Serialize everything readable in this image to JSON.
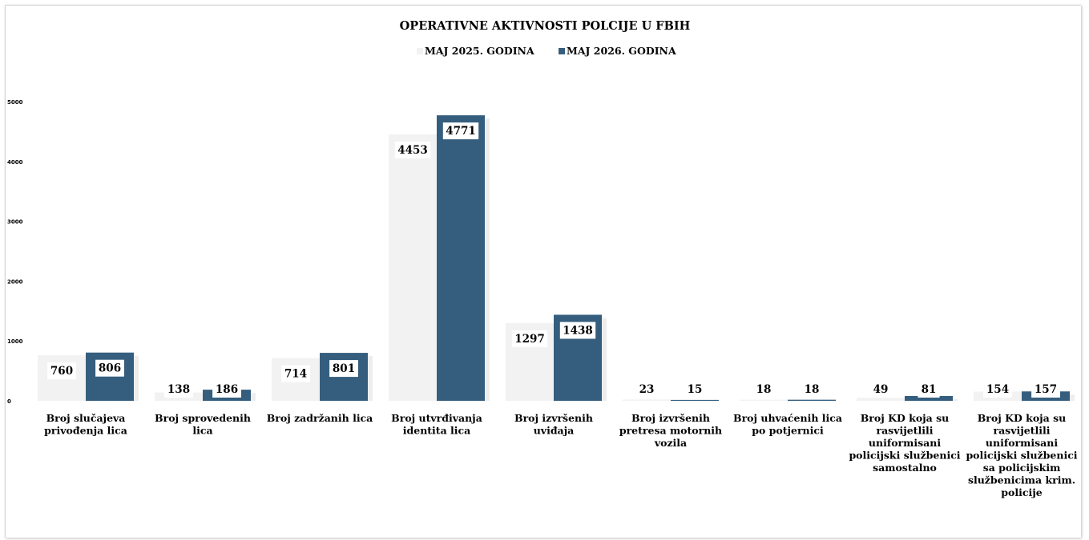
{
  "chart_data": {
    "type": "bar",
    "title": "OPERATIVNE AKTIVNOSTI  POLCIJE U FBIH",
    "xlabel": "",
    "ylabel": "",
    "ylim": [
      0,
      5000
    ],
    "yticks": [
      0,
      1000,
      2000,
      3000,
      4000,
      5000
    ],
    "grid": false,
    "legend_position": "top",
    "categories": [
      [
        "Broj slučajeva",
        "privođenja lica"
      ],
      [
        "Broj sprovedenih",
        "lica"
      ],
      [
        "Broj zadržanih lica"
      ],
      [
        "Broj utvrđivanja",
        "identita lica"
      ],
      [
        "Broj izvršenih",
        "uviđaja"
      ],
      [
        "Broj izvršenih",
        "pretresa motornih",
        "vozila"
      ],
      [
        "Broj uhvaćenih lica",
        "po potjernici"
      ],
      [
        "Broj KD koja su",
        "rasvijetlili",
        "uniformisani",
        "policijski službenici",
        "samostalno"
      ],
      [
        "Broj KD koja su",
        "rasvijetlili",
        "uniformisani",
        "policijski službenici",
        "sa policijskim",
        "službenicima krim.",
        "policije"
      ]
    ],
    "series": [
      {
        "name": "MAJ  2025. GODINA",
        "color": "#f2f2f2",
        "values": [
          760,
          138,
          714,
          4453,
          1297,
          23,
          18,
          49,
          154
        ]
      },
      {
        "name": "MAJ  2026. GODINA",
        "color": "#355e7e",
        "values": [
          806,
          186,
          801,
          4771,
          1438,
          15,
          18,
          81,
          157
        ]
      }
    ]
  }
}
